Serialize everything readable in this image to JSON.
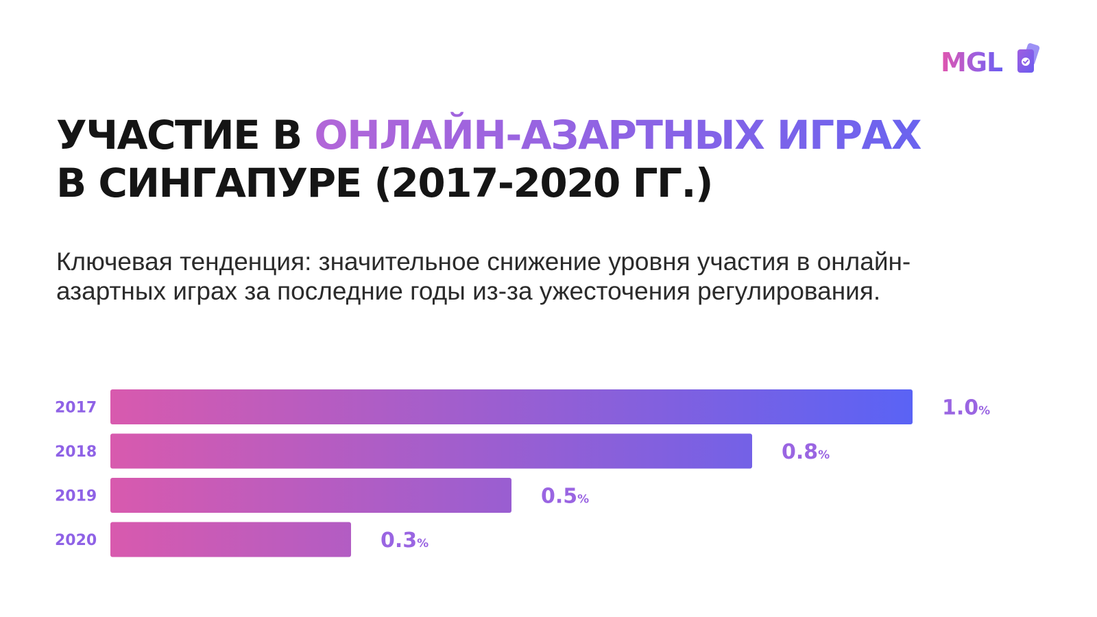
{
  "logo": {
    "text": "MGL",
    "icon": "cards-check-icon"
  },
  "title": {
    "part1": "УЧАСТИЕ В ",
    "accent": "ОНЛАЙН-АЗАРТНЫХ ИГРАХ",
    "line2": "В СИНГАПУРЕ (2017-2020 ГГ.)"
  },
  "subtitle": "Ключевая тенденция: значительное снижение уровня участия в онлайн-азартных играх за последние годы из-за ужесточения регулирования.",
  "colors": {
    "bar_start": "#d85aae",
    "bar_end": "#5a63f5",
    "label": "#8f62e6",
    "title_accent": "#9b63e2"
  },
  "chart_data": {
    "type": "bar",
    "orientation": "horizontal",
    "categories": [
      "2017",
      "2018",
      "2019",
      "2020"
    ],
    "values": [
      1.0,
      0.8,
      0.5,
      0.3
    ],
    "value_labels": [
      "1.0",
      "0.8",
      "0.5",
      "0.3"
    ],
    "unit": "%",
    "xlim": [
      0,
      1.0
    ],
    "grid": false
  }
}
